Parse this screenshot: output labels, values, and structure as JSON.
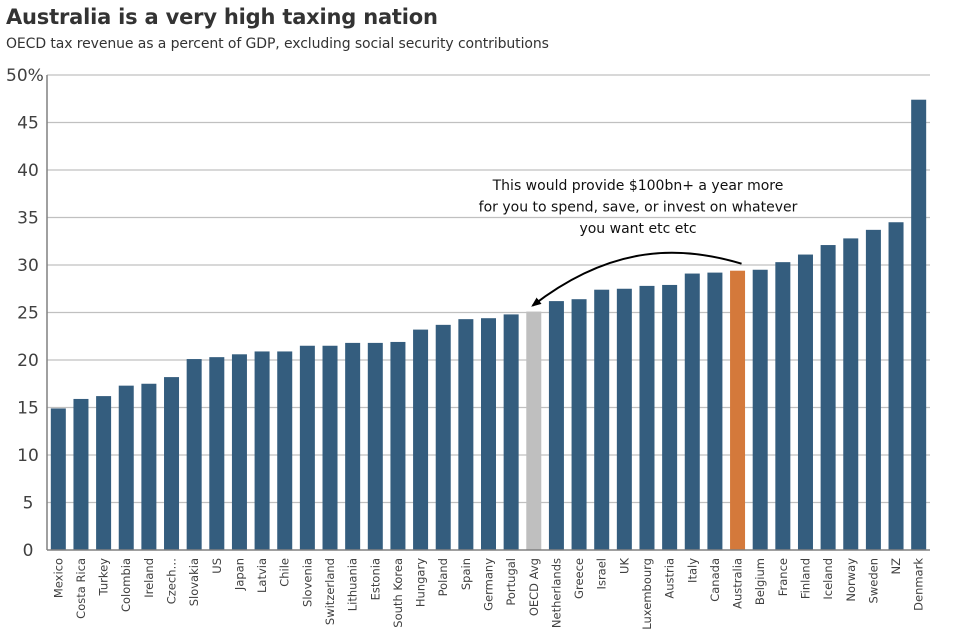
{
  "chart_data": {
    "type": "bar",
    "title": "Australia is a very high taxing nation",
    "subtitle": "OECD tax revenue as a percent of GDP, excluding social security contributions",
    "xlabel": "",
    "ylabel": "",
    "ylim": [
      0,
      50
    ],
    "yticks": [
      0,
      5,
      10,
      15,
      20,
      25,
      30,
      35,
      40,
      45,
      50
    ],
    "ytick_labels": [
      "0",
      "5",
      "10",
      "15",
      "20",
      "25",
      "30",
      "35",
      "40",
      "45",
      "50%"
    ],
    "grid": true,
    "legend": "none",
    "categories": [
      "Mexico",
      "Costa Rica",
      "Turkey",
      "Colombia",
      "Ireland",
      "Czech…",
      "Slovakia",
      "US",
      "Japan",
      "Latvia",
      "Chile",
      "Slovenia",
      "Switzerland",
      "Lithuania",
      "Estonia",
      "South Korea",
      "Hungary",
      "Poland",
      "Spain",
      "Germany",
      "Portugal",
      "OECD Avg",
      "Netherlands",
      "Greece",
      "Israel",
      "UK",
      "Luxembourg",
      "Austria",
      "Italy",
      "Canada",
      "Australia",
      "Belgium",
      "France",
      "Finland",
      "Iceland",
      "Norway",
      "Sweden",
      "NZ",
      "Denmark"
    ],
    "values": [
      14.9,
      15.9,
      16.2,
      17.3,
      17.5,
      18.2,
      20.1,
      20.3,
      20.6,
      20.9,
      20.9,
      21.5,
      21.5,
      21.8,
      21.8,
      21.9,
      23.2,
      23.7,
      24.3,
      24.4,
      24.8,
      25.1,
      26.2,
      26.4,
      27.4,
      27.5,
      27.8,
      27.9,
      29.1,
      29.2,
      29.4,
      29.5,
      30.3,
      31.1,
      32.1,
      32.8,
      33.7,
      34.5,
      47.4
    ],
    "highlight": {
      "Australia": "#d4793b",
      "OECD Avg": "#bfbfbf"
    },
    "default_color": "#345d7e",
    "gridline_color": "#c0c0c0",
    "annotations": [
      {
        "text_lines": [
          "This would provide $100bn+ a year more",
          "for you to spend, save, or invest on whatever",
          "you want etc etc"
        ],
        "arrow_from": "Australia",
        "arrow_to": "OECD Avg"
      }
    ]
  }
}
